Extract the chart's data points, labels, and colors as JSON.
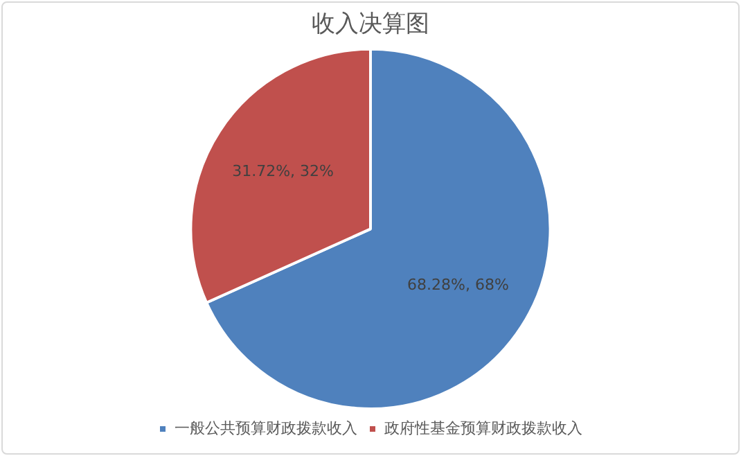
{
  "chart_data": {
    "type": "pie",
    "title": "收入决算图",
    "categories": [
      "一般公共预算财政拨款收入",
      "政府性基金预算财政拨款收入"
    ],
    "values": [
      68.28,
      31.72
    ],
    "colors": [
      "#4f81bd",
      "#c0504d"
    ],
    "value_labels": [
      "68.28%, 68%",
      "31.72%, 32%"
    ],
    "legend": "bottom"
  }
}
